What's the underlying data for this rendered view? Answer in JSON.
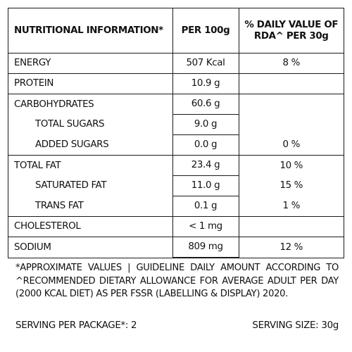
{
  "table": {
    "headers": {
      "name": "NUTRITIONAL INFORMATION*",
      "per100": "PER 100g",
      "dv_line1": "% DAILY VALUE OF",
      "dv_line2": "RDA^ PER 30g"
    },
    "rows": [
      {
        "name": "ENERGY",
        "per100": "507 Kcal",
        "dv": "8 %"
      },
      {
        "name": "PROTEIN",
        "per100": "10.9 g",
        "dv": ""
      },
      {
        "name": "CARBOHYDRATES",
        "per100": "60.6 g",
        "dv": ""
      },
      {
        "name": "TOTAL SUGARS",
        "per100": "9.0 g",
        "dv": ""
      },
      {
        "name": "ADDED SUGARS",
        "per100": "0.0 g",
        "dv": "0 %"
      },
      {
        "name": "TOTAL FAT",
        "per100": "23.4 g",
        "dv": "10 %"
      },
      {
        "name": "SATURATED FAT",
        "per100": "11.0 g",
        "dv": "15 %"
      },
      {
        "name": "TRANS FAT",
        "per100": "0.1 g",
        "dv": "1 %"
      },
      {
        "name": "CHOLESTEROL",
        "per100": "< 1 mg",
        "dv": ""
      },
      {
        "name": "SODIUM",
        "per100": "809 mg",
        "dv": "12 %"
      }
    ]
  },
  "footnote": "*APPROXIMATE VALUES | GUIDELINE DAILY AMOUNT ACCORDING TO ^RECOMMENDED DIETARY ALLOWANCE FOR AVERAGE ADULT PER DAY (2000 KCAL DIET) AS PER FSSR (LABELLING & DISPLAY) 2020.",
  "serving_per_package": "SERVING PER PACKAGE*: 2",
  "serving_size": "SERVING SIZE: 30g"
}
